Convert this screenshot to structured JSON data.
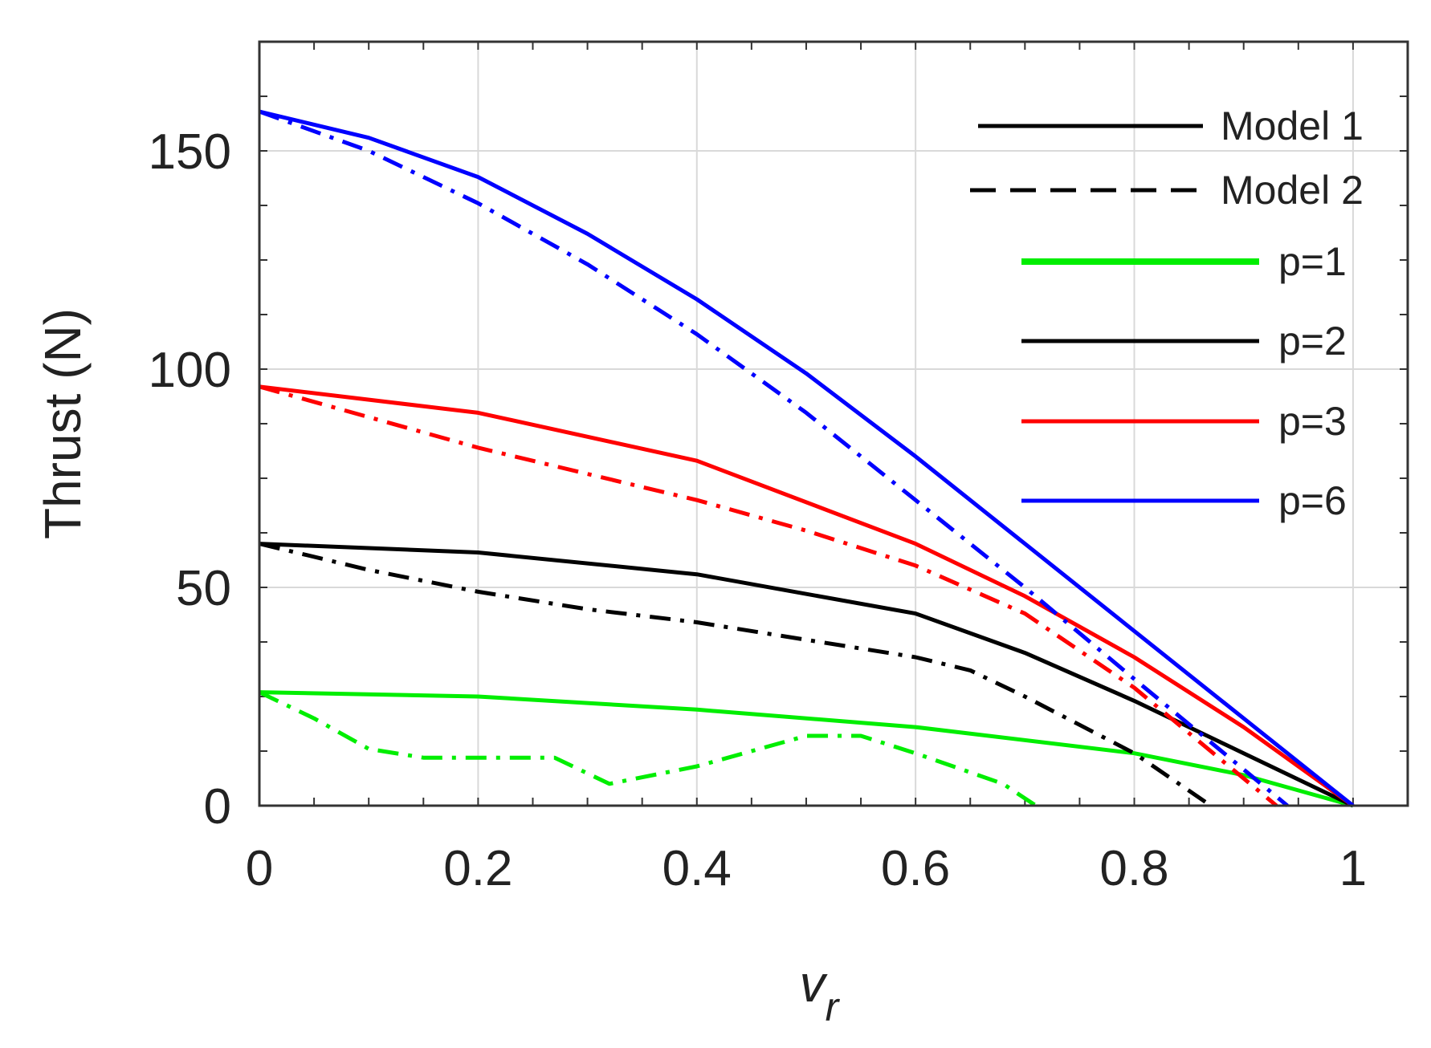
{
  "chart_data": {
    "type": "line",
    "title": "",
    "xlabel": "v",
    "xlabel_sub": "r",
    "ylabel": "Thrust (N)",
    "xlim": [
      0,
      1.05
    ],
    "ylim": [
      0,
      175
    ],
    "xticks": [
      0,
      0.2,
      0.4,
      0.6,
      0.8,
      1
    ],
    "xtick_labels": [
      "0",
      "0.2",
      "0.4",
      "0.6",
      "0.8",
      "1"
    ],
    "yticks": [
      0,
      50,
      100,
      150
    ],
    "ytick_labels": [
      "0",
      "50",
      "100",
      "150"
    ],
    "grid": true,
    "legend_position": "top-right",
    "legend": [
      {
        "label": "Model 1",
        "color": "#000000",
        "style": "solid"
      },
      {
        "label": "Model 2",
        "color": "#000000",
        "style": "dashed"
      },
      {
        "label": "p=1",
        "color": "#00ee00",
        "style": "solid"
      },
      {
        "label": "p=2",
        "color": "#000000",
        "style": "solid"
      },
      {
        "label": "p=3",
        "color": "#ff0000",
        "style": "solid"
      },
      {
        "label": "p=6",
        "color": "#0000ff",
        "style": "solid"
      }
    ],
    "series": [
      {
        "color": "#00ee00",
        "style": "solid",
        "x": [
          0,
          0.2,
          0.4,
          0.6,
          0.8,
          0.9,
          1.0
        ],
        "y": [
          26,
          25,
          22,
          18,
          12,
          7,
          0
        ]
      },
      {
        "color": "#00ee00",
        "style": "dashdot",
        "x": [
          0,
          0.05,
          0.1,
          0.15,
          0.2,
          0.27,
          0.32,
          0.4,
          0.5,
          0.55,
          0.6,
          0.68,
          0.71
        ],
        "y": [
          26,
          20,
          13,
          11,
          11,
          11,
          5,
          9,
          16,
          16,
          12,
          5,
          0
        ]
      },
      {
        "color": "#000000",
        "style": "solid",
        "x": [
          0,
          0.2,
          0.4,
          0.6,
          0.7,
          0.8,
          0.9,
          1.0
        ],
        "y": [
          60,
          58,
          53,
          44,
          35,
          24,
          12,
          0
        ]
      },
      {
        "color": "#000000",
        "style": "dashdot",
        "x": [
          0,
          0.1,
          0.2,
          0.3,
          0.4,
          0.5,
          0.6,
          0.65,
          0.7,
          0.8,
          0.87
        ],
        "y": [
          60,
          54,
          49,
          45,
          42,
          38,
          34,
          31,
          25,
          12,
          0
        ]
      },
      {
        "color": "#ff0000",
        "style": "solid",
        "x": [
          0,
          0.2,
          0.4,
          0.6,
          0.7,
          0.8,
          0.9,
          1.0
        ],
        "y": [
          96,
          90,
          79,
          60,
          48,
          34,
          18,
          0
        ]
      },
      {
        "color": "#ff0000",
        "style": "dashdot",
        "x": [
          0,
          0.1,
          0.2,
          0.3,
          0.4,
          0.5,
          0.6,
          0.7,
          0.8,
          0.93
        ],
        "y": [
          96,
          89,
          82,
          76,
          70,
          63,
          55,
          44,
          27,
          0
        ]
      },
      {
        "color": "#0000ff",
        "style": "solid",
        "x": [
          0,
          0.1,
          0.2,
          0.3,
          0.4,
          0.5,
          0.6,
          0.7,
          0.8,
          0.9,
          1.0
        ],
        "y": [
          159,
          153,
          144,
          131,
          116,
          99,
          80,
          60,
          40,
          20,
          0
        ]
      },
      {
        "color": "#0000ff",
        "style": "dashdot",
        "x": [
          0,
          0.1,
          0.2,
          0.3,
          0.4,
          0.5,
          0.6,
          0.7,
          0.8,
          0.94
        ],
        "y": [
          159,
          150,
          138,
          124,
          108,
          90,
          70,
          50,
          29,
          0
        ]
      }
    ]
  }
}
